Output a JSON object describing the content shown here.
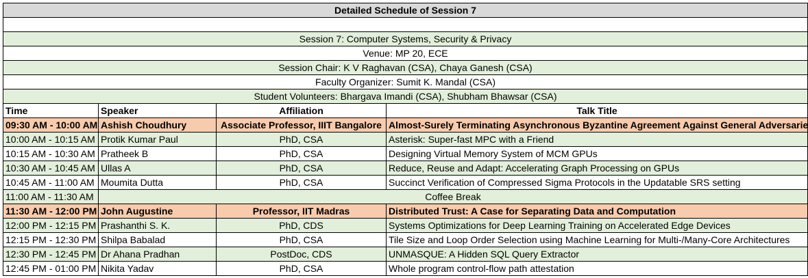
{
  "title": "Detailed Schedule of Session 7",
  "info": [
    "Session 7: Computer Systems, Security & Privacy",
    "Venue: MP 20, ECE",
    "Session Chair: K V Raghavan (CSA), Chaya Ganesh (CSA)",
    "Faculty Organizer: Sumit K. Mandal (CSA)",
    "Student Volunteers: Bhargava Imandi (CSA), Shubham Bhawsar (CSA)"
  ],
  "columns": [
    "Time",
    "Speaker",
    "Affiliation",
    "Talk Title"
  ],
  "rows": [
    {
      "time": "09:30 AM - 10:00 AM",
      "speaker": "Ashish Choudhury",
      "affiliation": "Associate Professor, IIIT Bangalore",
      "title": "Almost-Surely Terminating Asynchronous Byzantine Agreement Against General Adversaries"
    },
    {
      "time": "10:00 AM - 10:15 AM",
      "speaker": "Protik Kumar Paul",
      "affiliation": "PhD, CSA",
      "title": "Asterisk: Super-fast MPC with a Friend"
    },
    {
      "time": "10:15 AM - 10:30 AM",
      "speaker": "Pratheek B",
      "affiliation": "PhD, CSA",
      "title": "Designing Virtual Memory System of MCM GPUs"
    },
    {
      "time": "10:30 AM - 10:45 AM",
      "speaker": "Ullas A",
      "affiliation": "PhD, CSA",
      "title": "Reduce, Reuse and Adapt: Accelerating Graph Processing on GPUs"
    },
    {
      "time": "10:45 AM - 11:00 AM",
      "speaker": "Moumita Dutta",
      "affiliation": "PhD, CSA",
      "title": "Succinct Verification of Compressed Sigma Protocols in the Updatable SRS setting"
    },
    {
      "time": "11:00 AM - 11:30 AM",
      "label": "Coffee Break"
    },
    {
      "time": "11:30 AM - 12:00 PM",
      "speaker": "John Augustine",
      "affiliation": "Professor, IIT Madras",
      "title": "Distributed Trust: A Case for Separating Data and Computation"
    },
    {
      "time": "12:00 PM - 12:15 PM",
      "speaker": "Prashanthi S. K.",
      "affiliation": "PhD, CDS",
      "title": "Systems Optimizations for Deep Learning Training on Accelerated Edge Devices"
    },
    {
      "time": "12:15 PM - 12:30 PM",
      "speaker": "Shilpa Babalad",
      "affiliation": "PhD, CSA",
      "title": "Tile Size and Loop Order Selection using Machine Learning for Multi-/Many-Core Architectures"
    },
    {
      "time": "12:30 PM - 12:45 PM",
      "speaker": "Dr Ahana Pradhan",
      "affiliation": "PostDoc, CDS",
      "title": "UNMASQUE: A Hidden SQL Query Extractor"
    },
    {
      "time": "12:45 PM - 01:00 PM",
      "speaker": "Nikita Yadav",
      "affiliation": "PhD, CSA",
      "title": "Whole program control-flow path attestation"
    }
  ]
}
